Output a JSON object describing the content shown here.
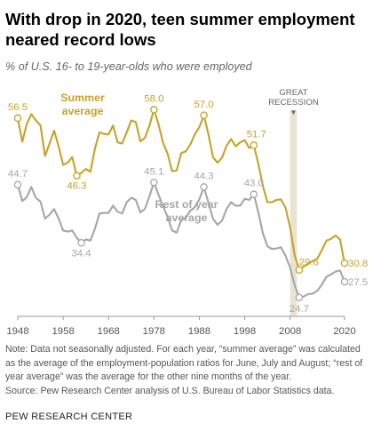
{
  "title": "With drop in 2020, teen summer employment neared record lows",
  "subtitle": "% of U.S. 16- to 19-year-olds who were employed",
  "colors": {
    "summer": "#c8a227",
    "rest": "#a6a6a6",
    "band": "#e8e4d2",
    "axis": "#999999"
  },
  "chart_data": {
    "type": "line",
    "title": "With drop in 2020, teen summer employment neared record lows",
    "xlim": [
      1948,
      2020
    ],
    "ylim": [
      22,
      62
    ],
    "x_ticks": [
      1948,
      1958,
      1968,
      1978,
      1988,
      1998,
      2008,
      2020
    ],
    "x_tick_labels": [
      "1948",
      "1958",
      "1968",
      "1978",
      "1988",
      "1998",
      "2008",
      "2020"
    ],
    "band": {
      "label_line1": "GREAT",
      "label_line2": "RECESSION",
      "marker": "▼",
      "x_start": 2008,
      "x_end": 2009.5
    },
    "series": [
      {
        "name": "Summer average",
        "label_line1": "Summer",
        "label_line2": "average",
        "color": "#c8a227",
        "x": [
          1948,
          1949,
          1950,
          1951,
          1952,
          1953,
          1954,
          1955,
          1956,
          1957,
          1958,
          1959,
          1960,
          1961,
          1962,
          1963,
          1964,
          1965,
          1966,
          1967,
          1968,
          1969,
          1970,
          1971,
          1972,
          1973,
          1974,
          1975,
          1976,
          1977,
          1978,
          1979,
          1980,
          1981,
          1982,
          1983,
          1984,
          1985,
          1986,
          1987,
          1988,
          1989,
          1990,
          1991,
          1992,
          1993,
          1994,
          1995,
          1996,
          1997,
          1998,
          1999,
          2000,
          2001,
          2002,
          2003,
          2004,
          2005,
          2006,
          2007,
          2008,
          2009,
          2010,
          2011,
          2012,
          2013,
          2014,
          2015,
          2016,
          2017,
          2018,
          2019,
          2020
        ],
        "values": [
          56.5,
          52.3,
          55.5,
          57.2,
          56.1,
          55.2,
          49.8,
          52.0,
          54.3,
          51.5,
          48.2,
          48.6,
          49.6,
          46.3,
          46.8,
          47.5,
          47.0,
          51.1,
          54.0,
          53.7,
          53.6,
          55.2,
          52.2,
          52.0,
          54.0,
          56.1,
          55.8,
          52.4,
          53.0,
          55.1,
          58.0,
          55.5,
          52.1,
          50.2,
          47.1,
          47.2,
          50.3,
          50.6,
          51.8,
          53.6,
          54.9,
          57.0,
          53.6,
          49.6,
          48.6,
          49.5,
          51.6,
          52.8,
          51.5,
          52.2,
          52.6,
          51.2,
          51.7,
          48.4,
          44.5,
          41.6,
          41.6,
          42.0,
          42.1,
          40.6,
          37.1,
          32.2,
          29.6,
          30.2,
          30.7,
          31.2,
          31.6,
          33.1,
          34.8,
          35.1,
          35.7,
          35.0,
          30.8
        ],
        "annotations": [
          {
            "x": 1948,
            "y": 56.5,
            "label": "56.5"
          },
          {
            "x": 1961,
            "y": 46.3,
            "label": "46.3"
          },
          {
            "x": 1978,
            "y": 58.0,
            "label": "58.0"
          },
          {
            "x": 1989,
            "y": 57.0,
            "label": "57.0"
          },
          {
            "x": 2000,
            "y": 51.7,
            "label": "51.7"
          },
          {
            "x": 2010,
            "y": 29.6,
            "label": "29.6"
          },
          {
            "x": 2020,
            "y": 30.8,
            "label": "30.8"
          }
        ]
      },
      {
        "name": "Rest of year average",
        "label_line1": "Rest of year",
        "label_line2": "average",
        "color": "#a6a6a6",
        "x": [
          1948,
          1949,
          1950,
          1951,
          1952,
          1953,
          1954,
          1955,
          1956,
          1957,
          1958,
          1959,
          1960,
          1961,
          1962,
          1963,
          1964,
          1965,
          1966,
          1967,
          1968,
          1969,
          1970,
          1971,
          1972,
          1973,
          1974,
          1975,
          1976,
          1977,
          1978,
          1979,
          1980,
          1981,
          1982,
          1983,
          1984,
          1985,
          1986,
          1987,
          1988,
          1989,
          1990,
          1991,
          1992,
          1993,
          1994,
          1995,
          1996,
          1997,
          1998,
          1999,
          2000,
          2001,
          2002,
          2003,
          2004,
          2005,
          2006,
          2007,
          2008,
          2009,
          2010,
          2011,
          2012,
          2013,
          2014,
          2015,
          2016,
          2017,
          2018,
          2019,
          2020
        ],
        "values": [
          44.7,
          41.8,
          42.5,
          44.3,
          42.4,
          41.7,
          38.7,
          39.4,
          40.4,
          38.7,
          36.6,
          36.4,
          36.6,
          35.3,
          34.4,
          35.0,
          34.8,
          36.9,
          39.6,
          39.7,
          39.7,
          41.0,
          39.9,
          39.6,
          41.6,
          42.4,
          42.0,
          39.8,
          40.4,
          42.6,
          45.1,
          43.0,
          40.9,
          39.0,
          36.6,
          36.2,
          38.4,
          38.8,
          40.1,
          40.7,
          42.1,
          44.3,
          41.5,
          38.7,
          37.6,
          38.3,
          40.4,
          41.6,
          41.0,
          41.0,
          42.2,
          42.0,
          43.0,
          39.8,
          36.1,
          33.8,
          33.3,
          33.4,
          33.6,
          32.1,
          30.0,
          26.9,
          24.7,
          24.9,
          25.3,
          25.4,
          25.9,
          27.0,
          28.4,
          28.8,
          29.3,
          29.5,
          27.5
        ],
        "annotations": [
          {
            "x": 1948,
            "y": 44.7,
            "label": "44.7"
          },
          {
            "x": 1962,
            "y": 34.4,
            "label": "34.4"
          },
          {
            "x": 1978,
            "y": 45.1,
            "label": "45.1"
          },
          {
            "x": 1989,
            "y": 44.3,
            "label": "44.3"
          },
          {
            "x": 2000,
            "y": 43.0,
            "label": "43.0"
          },
          {
            "x": 2010,
            "y": 24.7,
            "label": "24.7"
          },
          {
            "x": 2020,
            "y": 27.5,
            "label": "27.5"
          }
        ]
      }
    ]
  },
  "note": "Note: Data not seasonally adjusted. For each year, “summer average” was calculated as the average of the employment-population ratios for June, July and August; “rest of year average” was the average for the other nine months of the year.",
  "source": "Source: Pew Research Center analysis of U.S. Bureau of Labor Statistics data.",
  "brand": "PEW RESEARCH CENTER"
}
